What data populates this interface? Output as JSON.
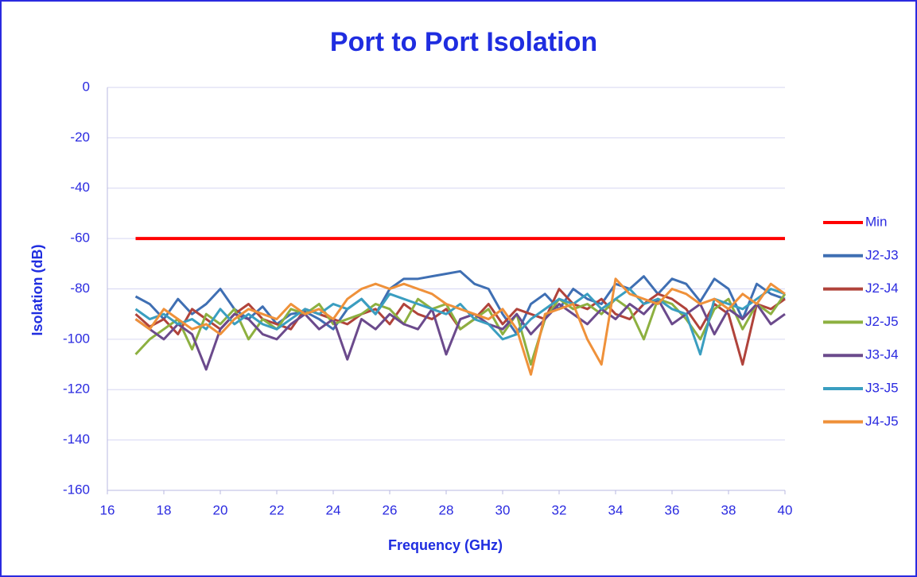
{
  "chart_data": {
    "type": "line",
    "title": "Port to Port Isolation",
    "x_label": "Frequency (GHz)",
    "y_label": "Isolation (dB)",
    "x": [
      17,
      17.5,
      18,
      18.5,
      19,
      19.5,
      20,
      20.5,
      21,
      21.5,
      22,
      22.5,
      23,
      23.5,
      24,
      24.5,
      25,
      25.5,
      26,
      26.5,
      27,
      27.5,
      28,
      28.5,
      29,
      29.5,
      30,
      30.5,
      31,
      31.5,
      32,
      32.5,
      33,
      33.5,
      34,
      34.5,
      35,
      35.5,
      36,
      36.5,
      37,
      37.5,
      38,
      38.5,
      39,
      39.5,
      40
    ],
    "series": [
      {
        "name": "Min",
        "color": "#ff0000",
        "values": [
          -60,
          -60,
          -60,
          -60,
          -60,
          -60,
          -60,
          -60,
          -60,
          -60,
          -60,
          -60,
          -60,
          -60,
          -60,
          -60,
          -60,
          -60,
          -60,
          -60,
          -60,
          -60,
          -60,
          -60,
          -60,
          -60,
          -60,
          -60,
          -60,
          -60,
          -60,
          -60,
          -60,
          -60,
          -60,
          -60,
          -60,
          -60,
          -60,
          -60,
          -60,
          -60,
          -60,
          -60,
          -60,
          -60,
          -60
        ]
      },
      {
        "name": "J2-J3",
        "color": "#3f6fb3",
        "values": [
          -83,
          -86,
          -92,
          -84,
          -90,
          -86,
          -80,
          -88,
          -92,
          -87,
          -94,
          -90,
          -89,
          -92,
          -96,
          -88,
          -84,
          -90,
          -80,
          -76,
          -76,
          -75,
          -74,
          -73,
          -78,
          -80,
          -90,
          -98,
          -86,
          -82,
          -88,
          -80,
          -84,
          -86,
          -78,
          -80,
          -75,
          -82,
          -76,
          -78,
          -85,
          -76,
          -80,
          -92,
          -78,
          -82,
          -84
        ]
      },
      {
        "name": "J2-J4",
        "color": "#b0433b",
        "values": [
          -90,
          -95,
          -92,
          -98,
          -88,
          -92,
          -96,
          -90,
          -86,
          -92,
          -94,
          -96,
          -88,
          -90,
          -92,
          -94,
          -90,
          -88,
          -94,
          -86,
          -90,
          -92,
          -88,
          -96,
          -92,
          -86,
          -94,
          -88,
          -90,
          -92,
          -80,
          -86,
          -88,
          -84,
          -90,
          -92,
          -86,
          -82,
          -84,
          -88,
          -96,
          -86,
          -90,
          -110,
          -86,
          -88,
          -84
        ]
      },
      {
        "name": "J2-J5",
        "color": "#8db040",
        "values": [
          -106,
          -100,
          -96,
          -92,
          -104,
          -90,
          -94,
          -88,
          -100,
          -92,
          -96,
          -88,
          -90,
          -86,
          -94,
          -92,
          -90,
          -86,
          -88,
          -94,
          -84,
          -88,
          -86,
          -96,
          -92,
          -88,
          -98,
          -90,
          -110,
          -92,
          -84,
          -88,
          -86,
          -90,
          -84,
          -88,
          -100,
          -84,
          -86,
          -92,
          -100,
          -88,
          -84,
          -96,
          -86,
          -90,
          -82
        ]
      },
      {
        "name": "J3-J4",
        "color": "#6b4a8c",
        "values": [
          -92,
          -96,
          -100,
          -94,
          -98,
          -112,
          -96,
          -90,
          -92,
          -98,
          -100,
          -94,
          -90,
          -96,
          -92,
          -108,
          -92,
          -96,
          -90,
          -94,
          -96,
          -88,
          -106,
          -92,
          -90,
          -94,
          -96,
          -90,
          -98,
          -92,
          -86,
          -90,
          -94,
          -88,
          -92,
          -86,
          -90,
          -84,
          -94,
          -90,
          -86,
          -98,
          -88,
          -92,
          -86,
          -94,
          -90
        ]
      },
      {
        "name": "J3-J5",
        "color": "#3a9ec0",
        "values": [
          -88,
          -92,
          -90,
          -94,
          -92,
          -96,
          -88,
          -94,
          -90,
          -94,
          -96,
          -92,
          -88,
          -90,
          -86,
          -88,
          -84,
          -90,
          -82,
          -84,
          -86,
          -88,
          -90,
          -86,
          -92,
          -94,
          -100,
          -98,
          -92,
          -88,
          -84,
          -86,
          -82,
          -88,
          -84,
          -80,
          -86,
          -84,
          -88,
          -90,
          -106,
          -84,
          -86,
          -88,
          -84,
          -80,
          -82
        ]
      },
      {
        "name": "J4-J5",
        "color": "#ef913a",
        "values": [
          -92,
          -96,
          -88,
          -92,
          -96,
          -94,
          -98,
          -92,
          -88,
          -90,
          -92,
          -86,
          -90,
          -88,
          -92,
          -84,
          -80,
          -78,
          -80,
          -78,
          -80,
          -82,
          -86,
          -88,
          -90,
          -92,
          -88,
          -96,
          -114,
          -90,
          -88,
          -86,
          -100,
          -110,
          -76,
          -82,
          -84,
          -86,
          -80,
          -82,
          -86,
          -84,
          -88,
          -82,
          -86,
          -78,
          -82
        ]
      }
    ],
    "xlim": [
      16,
      40
    ],
    "xticks": [
      16,
      18,
      20,
      22,
      24,
      26,
      28,
      30,
      32,
      34,
      36,
      38,
      40
    ],
    "ylim": [
      -160,
      0
    ],
    "yticks": [
      0,
      -20,
      -40,
      -60,
      -80,
      -100,
      -120,
      -140,
      -160
    ],
    "grid": true,
    "legend": "right"
  }
}
